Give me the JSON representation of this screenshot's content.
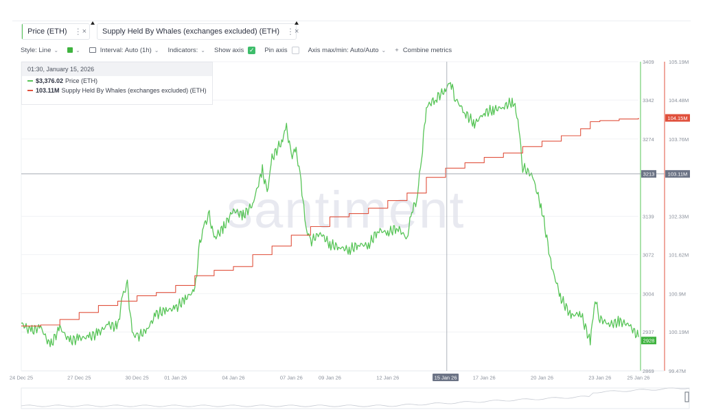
{
  "metrics": [
    {
      "label": "Price (ETH)",
      "color": "#56c456"
    },
    {
      "label": "Supply Held By Whales (exchanges excluded) (ETH)",
      "color": "#e0503c"
    }
  ],
  "toolbar": {
    "style_label": "Style: Line",
    "interval_label": "Interval: Auto (1h)",
    "indicators_label": "Indicators:",
    "show_axis_label": "Show axis",
    "show_axis_checked": true,
    "pin_axis_label": "Pin axis",
    "pin_axis_checked": false,
    "axis_maxmin_label": "Axis max/min: Auto/Auto",
    "combine_label": "Combine metrics",
    "combine_plus": "+"
  },
  "tooltip": {
    "date": "01:30, January 15, 2026",
    "price_value": "$3,376.02",
    "price_name": "Price (ETH)",
    "whale_value": "103.11M",
    "whale_name": "Supply Held By Whales (exchanges excluded) (ETH)"
  },
  "watermark": "santiment",
  "chart_data": {
    "type": "line",
    "x_ticks": [
      "24 Dec 25",
      "27 Dec 25",
      "30 Dec 25",
      "01 Jan 26",
      "04 Jan 26",
      "07 Jan 26",
      "09 Jan 26",
      "12 Jan 26",
      "15 Jan 26",
      "17 Jan 26",
      "20 Jan 26",
      "23 Jan 26",
      "25 Jan 26"
    ],
    "highlighted_x": "15 Jan 26",
    "x_range": [
      "2025-12-24",
      "2026-01-25"
    ],
    "y_left": {
      "ticks": [
        "3409",
        "3342",
        "3274",
        "3139",
        "3072",
        "3004",
        "2937",
        "2869"
      ],
      "range": [
        2869,
        3409
      ],
      "color": "#56c456"
    },
    "y_right": {
      "ticks": [
        "105.19M",
        "104.48M",
        "103.76M",
        "102.33M",
        "101.62M",
        "100.9M",
        "100.19M",
        "99.47M"
      ],
      "range": [
        99.47,
        105.19
      ],
      "color": "#e0503c"
    },
    "crosshair": {
      "left_label": "3213",
      "right_label": "103.11M",
      "x": "2026-01-15 01:30"
    },
    "last_labels": {
      "price": "2928",
      "whales": "104.15M"
    },
    "series": [
      {
        "name": "Price (ETH)",
        "color": "#56c456",
        "axis": "left",
        "points": [
          [
            "2025-12-24 00:00",
            2952
          ],
          [
            "2025-12-24 12:00",
            2938
          ],
          [
            "2025-12-25 00:00",
            2946
          ],
          [
            "2025-12-25 12:00",
            2912
          ],
          [
            "2025-12-26 00:00",
            2945
          ],
          [
            "2025-12-26 12:00",
            2921
          ],
          [
            "2025-12-27 00:00",
            2926
          ],
          [
            "2025-12-27 12:00",
            2928
          ],
          [
            "2025-12-28 00:00",
            2935
          ],
          [
            "2025-12-28 12:00",
            2950
          ],
          [
            "2025-12-29 00:00",
            2945
          ],
          [
            "2025-12-29 06:00",
            3000
          ],
          [
            "2025-12-29 12:00",
            3020
          ],
          [
            "2025-12-29 18:00",
            2935
          ],
          [
            "2025-12-30 00:00",
            2928
          ],
          [
            "2025-12-30 12:00",
            2940
          ],
          [
            "2025-12-31 00:00",
            2968
          ],
          [
            "2025-12-31 12:00",
            2975
          ],
          [
            "2026-01-01 00:00",
            2978
          ],
          [
            "2026-01-01 12:00",
            2995
          ],
          [
            "2026-01-02 00:00",
            3010
          ],
          [
            "2026-01-02 06:00",
            3090
          ],
          [
            "2026-01-02 12:00",
            3125
          ],
          [
            "2026-01-02 18:00",
            3140
          ],
          [
            "2026-01-03 00:00",
            3100
          ],
          [
            "2026-01-03 12:00",
            3120
          ],
          [
            "2026-01-04 00:00",
            3150
          ],
          [
            "2026-01-04 12:00",
            3140
          ],
          [
            "2026-01-05 00:00",
            3160
          ],
          [
            "2026-01-05 12:00",
            3220
          ],
          [
            "2026-01-05 18:00",
            3180
          ],
          [
            "2026-01-06 00:00",
            3240
          ],
          [
            "2026-01-06 12:00",
            3270
          ],
          [
            "2026-01-06 18:00",
            3295
          ],
          [
            "2026-01-07 00:00",
            3245
          ],
          [
            "2026-01-07 06:00",
            3255
          ],
          [
            "2026-01-07 12:00",
            3200
          ],
          [
            "2026-01-07 18:00",
            3120
          ],
          [
            "2026-01-08 00:00",
            3095
          ],
          [
            "2026-01-08 12:00",
            3110
          ],
          [
            "2026-01-09 00:00",
            3090
          ],
          [
            "2026-01-09 12:00",
            3085
          ],
          [
            "2026-01-10 00:00",
            3080
          ],
          [
            "2026-01-10 12:00",
            3090
          ],
          [
            "2026-01-11 00:00",
            3088
          ],
          [
            "2026-01-11 12:00",
            3115
          ],
          [
            "2026-01-12 00:00",
            3110
          ],
          [
            "2026-01-12 12:00",
            3120
          ],
          [
            "2026-01-13 00:00",
            3100
          ],
          [
            "2026-01-13 06:00",
            3150
          ],
          [
            "2026-01-13 12:00",
            3165
          ],
          [
            "2026-01-13 18:00",
            3240
          ],
          [
            "2026-01-14 00:00",
            3330
          ],
          [
            "2026-01-14 12:00",
            3345
          ],
          [
            "2026-01-15 00:00",
            3360
          ],
          [
            "2026-01-15 06:00",
            3375
          ],
          [
            "2026-01-15 12:00",
            3345
          ],
          [
            "2026-01-16 00:00",
            3320
          ],
          [
            "2026-01-16 12:00",
            3300
          ],
          [
            "2026-01-17 00:00",
            3320
          ],
          [
            "2026-01-17 12:00",
            3325
          ],
          [
            "2026-01-18 00:00",
            3330
          ],
          [
            "2026-01-18 12:00",
            3340
          ],
          [
            "2026-01-18 18:00",
            3310
          ],
          [
            "2026-01-19 00:00",
            3225
          ],
          [
            "2026-01-19 12:00",
            3210
          ],
          [
            "2026-01-20 00:00",
            3150
          ],
          [
            "2026-01-20 12:00",
            3050
          ],
          [
            "2026-01-21 00:00",
            2995
          ],
          [
            "2026-01-21 12:00",
            2965
          ],
          [
            "2026-01-22 00:00",
            2970
          ],
          [
            "2026-01-22 12:00",
            2920
          ],
          [
            "2026-01-22 18:00",
            2995
          ],
          [
            "2026-01-23 00:00",
            2960
          ],
          [
            "2026-01-23 12:00",
            2950
          ],
          [
            "2026-01-24 00:00",
            2955
          ],
          [
            "2026-01-24 12:00",
            2950
          ],
          [
            "2026-01-25 00:00",
            2928
          ]
        ]
      },
      {
        "name": "Supply Held By Whales (exchanges excluded) (ETH)",
        "color": "#e0503c",
        "axis": "right",
        "points": [
          [
            "2025-12-24 00:00",
            100.3
          ],
          [
            "2025-12-25 00:00",
            100.32
          ],
          [
            "2025-12-26 00:00",
            100.42
          ],
          [
            "2025-12-27 00:00",
            100.55
          ],
          [
            "2025-12-28 00:00",
            100.68
          ],
          [
            "2025-12-29 00:00",
            100.76
          ],
          [
            "2025-12-30 00:00",
            100.86
          ],
          [
            "2025-12-31 00:00",
            100.92
          ],
          [
            "2026-01-01 00:00",
            101.05
          ],
          [
            "2026-01-02 00:00",
            101.23
          ],
          [
            "2026-01-03 00:00",
            101.33
          ],
          [
            "2026-01-04 00:00",
            101.4
          ],
          [
            "2026-01-05 00:00",
            101.62
          ],
          [
            "2026-01-06 00:00",
            101.78
          ],
          [
            "2026-01-07 00:00",
            101.98
          ],
          [
            "2026-01-08 00:00",
            102.14
          ],
          [
            "2026-01-09 00:00",
            102.32
          ],
          [
            "2026-01-10 00:00",
            102.38
          ],
          [
            "2026-01-11 00:00",
            102.48
          ],
          [
            "2026-01-12 00:00",
            102.62
          ],
          [
            "2026-01-13 00:00",
            102.76
          ],
          [
            "2026-01-14 00:00",
            103.05
          ],
          [
            "2026-01-15 00:00",
            103.22
          ],
          [
            "2026-01-16 00:00",
            103.32
          ],
          [
            "2026-01-17 00:00",
            103.42
          ],
          [
            "2026-01-18 00:00",
            103.5
          ],
          [
            "2026-01-19 00:00",
            103.62
          ],
          [
            "2026-01-20 00:00",
            103.72
          ],
          [
            "2026-01-21 00:00",
            103.82
          ],
          [
            "2026-01-22 00:00",
            103.95
          ],
          [
            "2026-01-22 12:00",
            104.08
          ],
          [
            "2026-01-23 00:00",
            104.1
          ],
          [
            "2026-01-24 00:00",
            104.13
          ],
          [
            "2026-01-25 00:00",
            104.15
          ]
        ]
      }
    ]
  }
}
